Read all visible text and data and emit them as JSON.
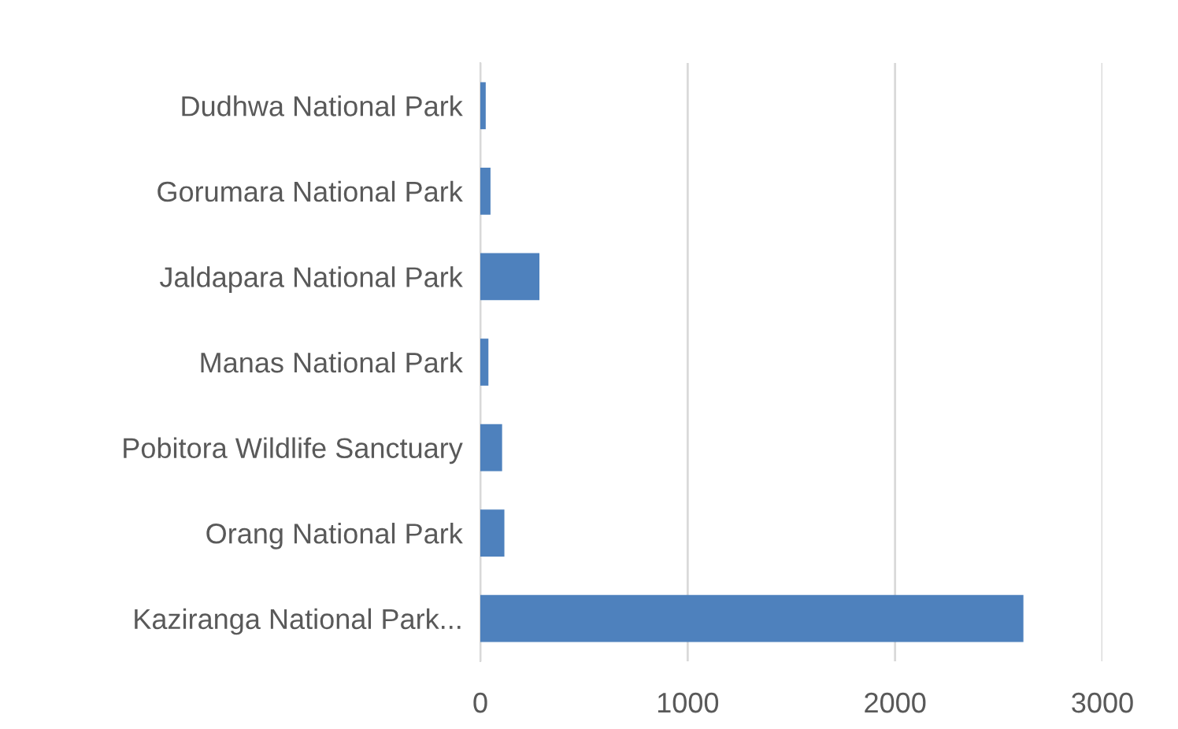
{
  "chart_data": {
    "type": "bar",
    "orientation": "horizontal",
    "categories": [
      "Dudhwa National Park",
      "Gorumara National Park",
      "Jaldapara National Park",
      "Manas National Park",
      "Pobitora Wildlife Sanctuary",
      "Orang National Park",
      "Kaziranga National Park..."
    ],
    "values": [
      26,
      49,
      285,
      39,
      105,
      116,
      2619
    ],
    "color": "#4e81bd",
    "xlim": [
      0,
      3000
    ],
    "xticks": [
      0,
      1000,
      2000,
      3000
    ],
    "grid": "x"
  }
}
